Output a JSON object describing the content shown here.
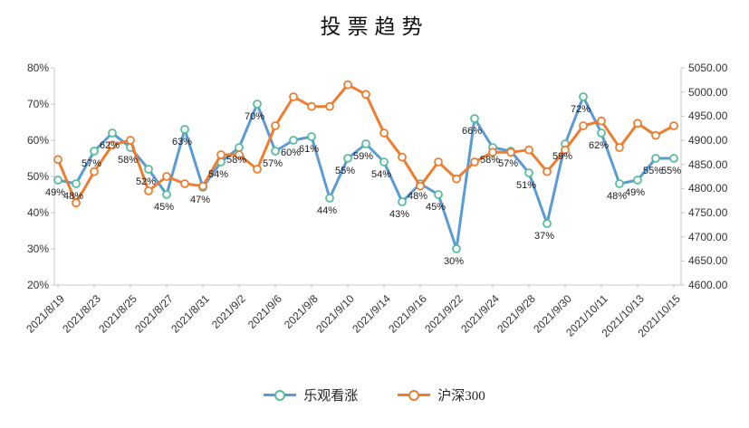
{
  "title": "投票趋势",
  "colors": {
    "blue_line": "#5B9BD5",
    "blue_marker_border": "#57BD9B",
    "orange_line": "#ED7D31",
    "axis_line": "#C6C6C6",
    "axis_text": "#333333",
    "data_label_text": "#1a1a1a"
  },
  "legend": {
    "position": "bottom",
    "items": [
      {
        "label": "乐观看涨",
        "line_color": "#5B9BD5",
        "marker_border": "#57BD9B"
      },
      {
        "label": "沪深300",
        "line_color": "#ED7D31",
        "marker_border": "#ED7D31"
      }
    ]
  },
  "chart_data": {
    "type": "line",
    "title": "投票趋势",
    "grid": false,
    "legend_position": "bottom",
    "x": [
      "2021/8/19",
      "2021/8/20",
      "2021/8/23",
      "2021/8/24",
      "2021/8/25",
      "2021/8/26",
      "2021/8/27",
      "2021/8/30",
      "2021/8/31",
      "2021/9/1",
      "2021/9/2",
      "2021/9/3",
      "2021/9/6",
      "2021/9/7",
      "2021/9/8",
      "2021/9/9",
      "2021/9/10",
      "2021/9/13",
      "2021/9/14",
      "2021/9/15",
      "2021/9/16",
      "2021/9/17",
      "2021/9/22",
      "2021/9/23",
      "2021/9/24",
      "2021/9/27",
      "2021/9/28",
      "2021/9/29",
      "2021/9/30",
      "2021/10/8",
      "2021/10/11",
      "2021/10/12",
      "2021/10/13",
      "2021/10/14",
      "2021/10/15"
    ],
    "x_tick_labels": [
      "2021/8/19",
      "2021/8/23",
      "2021/8/25",
      "2021/8/27",
      "2021/8/31",
      "2021/9/2",
      "2021/9/6",
      "2021/9/8",
      "2021/9/10",
      "2021/9/14",
      "2021/9/16",
      "2021/9/22",
      "2021/9/24",
      "2021/9/28",
      "2021/9/30",
      "2021/10/11",
      "2021/10/13",
      "2021/10/15"
    ],
    "x_tick_every": 2,
    "series": [
      {
        "name": "乐观看涨",
        "axis": "left",
        "unit": "%",
        "show_labels": true,
        "values": [
          49,
          48,
          57,
          62,
          58,
          52,
          45,
          63,
          47,
          54,
          58,
          70,
          57,
          60,
          61,
          44,
          55,
          59,
          54,
          43,
          48,
          45,
          30,
          66,
          58,
          57,
          51,
          37,
          59,
          72,
          62,
          48,
          49,
          55,
          55
        ]
      },
      {
        "name": "沪深300",
        "axis": "right",
        "unit": "",
        "show_labels": false,
        "values": [
          4860,
          4770,
          4835,
          4890,
          4900,
          4795,
          4825,
          4810,
          4805,
          4870,
          4870,
          4840,
          4930,
          4990,
          4970,
          4970,
          5015,
          4995,
          4915,
          4865,
          4805,
          4855,
          4820,
          4855,
          4875,
          4875,
          4880,
          4835,
          4880,
          4930,
          4940,
          4885,
          4935,
          4910,
          4930
        ]
      }
    ],
    "left_axis": {
      "min": 20,
      "max": 80,
      "step": 10,
      "tick_labels": [
        "80%",
        "70%",
        "60%",
        "50%",
        "40%",
        "30%",
        "20%"
      ]
    },
    "right_axis": {
      "min": 4600,
      "max": 5050,
      "step": 50,
      "tick_labels": [
        "5050.00",
        "5000.00",
        "4950.00",
        "4900.00",
        "4850.00",
        "4800.00",
        "4750.00",
        "4700.00",
        "4650.00",
        "4600.00"
      ]
    }
  }
}
